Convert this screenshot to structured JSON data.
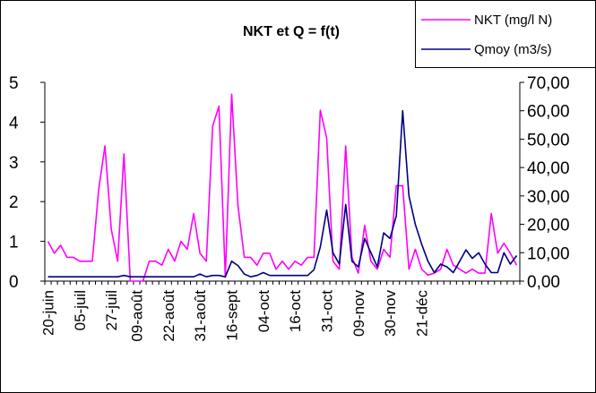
{
  "chart_data": {
    "type": "line",
    "title": "NKT et Q = f(t)",
    "xlabel": "",
    "ylabel_left": "",
    "ylabel_right": "",
    "y_left_lim": [
      0,
      5
    ],
    "y_left_ticks": [
      "0",
      "1",
      "2",
      "3",
      "4",
      "5"
    ],
    "y_right_lim": [
      0,
      70
    ],
    "y_right_ticks": [
      "0,00",
      "10,00",
      "20,00",
      "30,00",
      "40,00",
      "50,00",
      "60,00",
      "70,00"
    ],
    "x_tick_labels": [
      "20-juin",
      "05-juil",
      "27-juil",
      "09-août",
      "22-août",
      "31-août",
      "16-sept",
      "04-oct",
      "16-oct",
      "31-oct",
      "09-nov",
      "30-nov",
      "21-déc"
    ],
    "x_tick_index": [
      0,
      5,
      10,
      14,
      19,
      24,
      29,
      34,
      39,
      44,
      49,
      54,
      59
    ],
    "legend_position": "top-right",
    "grid": false,
    "colors": {
      "NKT": "#ff00ff",
      "Qmoy": "#000080"
    },
    "series": [
      {
        "name": "NKT  (mg/l N)",
        "axis": "left",
        "values": [
          1.0,
          0.7,
          0.9,
          0.6,
          0.6,
          0.5,
          0.5,
          0.5,
          2.3,
          3.4,
          1.3,
          0.5,
          3.2,
          0.0,
          0.0,
          0.0,
          0.5,
          0.5,
          0.4,
          0.8,
          0.5,
          1.0,
          0.8,
          1.7,
          0.7,
          0.5,
          3.9,
          4.4,
          0.1,
          4.7,
          1.9,
          0.6,
          0.6,
          0.4,
          0.7,
          0.7,
          0.3,
          0.5,
          0.3,
          0.5,
          0.4,
          0.6,
          0.6,
          4.3,
          3.6,
          0.5,
          0.3,
          3.4,
          0.6,
          0.2,
          1.4,
          0.5,
          0.3,
          0.8,
          0.6,
          2.4,
          2.4,
          0.3,
          0.8,
          0.3,
          0.15,
          0.2,
          0.3,
          0.8,
          0.4,
          0.3,
          0.2,
          0.3,
          0.2,
          0.2,
          1.7,
          0.7,
          0.95,
          0.7,
          0.4
        ]
      },
      {
        "name": "Qmoy (m3/s)",
        "axis": "right",
        "values": [
          1.5,
          1.5,
          1.5,
          1.5,
          1.5,
          1.5,
          1.5,
          1.5,
          1.5,
          1.5,
          1.5,
          1.5,
          2.0,
          1.5,
          1.5,
          1.5,
          1.5,
          1.5,
          1.5,
          1.5,
          1.5,
          1.5,
          1.5,
          1.5,
          2.5,
          1.5,
          2.0,
          2.0,
          1.5,
          7.0,
          5.5,
          2.5,
          1.5,
          2.0,
          3.0,
          2.0,
          2.0,
          2.0,
          2.0,
          2.0,
          2.0,
          2.0,
          4.0,
          12.0,
          25.0,
          10.0,
          6.0,
          27.0,
          7.0,
          5.0,
          15.0,
          10.0,
          5.0,
          17.0,
          15.0,
          23.0,
          60.0,
          30.0,
          20.0,
          13.0,
          7.0,
          3.0,
          6.0,
          5.0,
          3.0,
          7.0,
          11.0,
          8.0,
          10.0,
          6.0,
          3.0,
          3.0,
          10.0,
          6.0,
          9.0
        ]
      }
    ]
  }
}
